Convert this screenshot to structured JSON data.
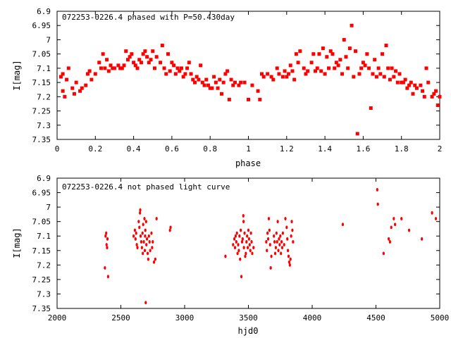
{
  "marker_color": "#ff0000",
  "chart_data": [
    {
      "type": "scatter",
      "title": "072253-0226.4 phased with P=50.430day",
      "xlabel": "phase",
      "ylabel": "I[mag]",
      "xlim": [
        0,
        2
      ],
      "ylim": [
        7.35,
        6.9
      ],
      "y_reversed": true,
      "xticks": [
        "0",
        "0.2",
        "0.4",
        "0.6",
        "0.8",
        "1",
        "1.2",
        "1.4",
        "1.6",
        "1.8",
        "2"
      ],
      "yticks": [
        "6.9",
        "6.95",
        "7",
        "7.05",
        "7.1",
        "7.15",
        "7.2",
        "7.25",
        "7.3",
        "7.35"
      ],
      "grid": false,
      "points": [
        [
          0.02,
          7.13
        ],
        [
          0.03,
          7.18
        ],
        [
          0.03,
          7.12
        ],
        [
          0.04,
          7.2
        ],
        [
          0.05,
          7.14
        ],
        [
          0.06,
          7.1
        ],
        [
          0.08,
          7.17
        ],
        [
          0.09,
          7.19
        ],
        [
          0.1,
          7.15
        ],
        [
          0.12,
          7.18
        ],
        [
          0.13,
          7.17
        ],
        [
          0.15,
          7.16
        ],
        [
          0.16,
          7.12
        ],
        [
          0.17,
          7.11
        ],
        [
          0.18,
          7.14
        ],
        [
          0.2,
          7.12
        ],
        [
          0.22,
          7.08
        ],
        [
          0.23,
          7.1
        ],
        [
          0.24,
          7.05
        ],
        [
          0.25,
          7.1
        ],
        [
          0.26,
          7.07
        ],
        [
          0.27,
          7.11
        ],
        [
          0.28,
          7.09
        ],
        [
          0.29,
          7.1
        ],
        [
          0.3,
          7.1
        ],
        [
          0.32,
          7.09
        ],
        [
          0.33,
          7.1
        ],
        [
          0.34,
          7.1
        ],
        [
          0.35,
          7.09
        ],
        [
          0.36,
          7.04
        ],
        [
          0.37,
          7.07
        ],
        [
          0.38,
          7.06
        ],
        [
          0.39,
          7.05
        ],
        [
          0.4,
          7.08
        ],
        [
          0.41,
          7.09
        ],
        [
          0.42,
          7.1
        ],
        [
          0.43,
          7.07
        ],
        [
          0.44,
          7.08
        ],
        [
          0.45,
          7.05
        ],
        [
          0.46,
          7.04
        ],
        [
          0.47,
          7.06
        ],
        [
          0.48,
          7.08
        ],
        [
          0.49,
          7.07
        ],
        [
          0.5,
          7.04
        ],
        [
          0.51,
          7.1
        ],
        [
          0.52,
          7.06
        ],
        [
          0.54,
          7.08
        ],
        [
          0.55,
          7.02
        ],
        [
          0.56,
          7.1
        ],
        [
          0.57,
          7.12
        ],
        [
          0.58,
          7.05
        ],
        [
          0.59,
          7.11
        ],
        [
          0.6,
          7.08
        ],
        [
          0.61,
          7.09
        ],
        [
          0.62,
          7.12
        ],
        [
          0.63,
          7.1
        ],
        [
          0.64,
          7.11
        ],
        [
          0.65,
          7.1
        ],
        [
          0.66,
          7.13
        ],
        [
          0.67,
          7.12
        ],
        [
          0.68,
          7.1
        ],
        [
          0.69,
          7.08
        ],
        [
          0.7,
          7.12
        ],
        [
          0.71,
          7.14
        ],
        [
          0.72,
          7.15
        ],
        [
          0.73,
          7.13
        ],
        [
          0.74,
          7.14
        ],
        [
          0.75,
          7.09
        ],
        [
          0.76,
          7.15
        ],
        [
          0.77,
          7.16
        ],
        [
          0.78,
          7.14
        ],
        [
          0.79,
          7.16
        ],
        [
          0.8,
          7.17
        ],
        [
          0.81,
          7.17
        ],
        [
          0.82,
          7.13
        ],
        [
          0.83,
          7.15
        ],
        [
          0.84,
          7.17
        ],
        [
          0.85,
          7.14
        ],
        [
          0.86,
          7.19
        ],
        [
          0.87,
          7.15
        ],
        [
          0.88,
          7.12
        ],
        [
          0.89,
          7.11
        ],
        [
          0.9,
          7.21
        ],
        [
          0.91,
          7.14
        ],
        [
          0.92,
          7.16
        ],
        [
          0.93,
          7.15
        ],
        [
          0.95,
          7.16
        ],
        [
          0.96,
          7.15
        ],
        [
          0.98,
          7.15
        ],
        [
          1.0,
          7.21
        ],
        [
          1.02,
          7.16
        ],
        [
          1.05,
          7.18
        ],
        [
          1.06,
          7.21
        ],
        [
          1.07,
          7.12
        ],
        [
          1.08,
          7.13
        ],
        [
          1.1,
          7.12
        ],
        [
          1.12,
          7.13
        ],
        [
          1.13,
          7.14
        ],
        [
          1.15,
          7.1
        ],
        [
          1.16,
          7.12
        ],
        [
          1.18,
          7.13
        ],
        [
          1.19,
          7.11
        ],
        [
          1.2,
          7.13
        ],
        [
          1.21,
          7.12
        ],
        [
          1.22,
          7.09
        ],
        [
          1.23,
          7.11
        ],
        [
          1.24,
          7.14
        ],
        [
          1.25,
          7.05
        ],
        [
          1.26,
          7.08
        ],
        [
          1.27,
          7.04
        ],
        [
          1.29,
          7.1
        ],
        [
          1.3,
          7.12
        ],
        [
          1.31,
          7.11
        ],
        [
          1.33,
          7.08
        ],
        [
          1.34,
          7.05
        ],
        [
          1.35,
          7.11
        ],
        [
          1.36,
          7.1
        ],
        [
          1.37,
          7.05
        ],
        [
          1.38,
          7.11
        ],
        [
          1.39,
          7.03
        ],
        [
          1.4,
          7.12
        ],
        [
          1.41,
          7.06
        ],
        [
          1.42,
          7.1
        ],
        [
          1.43,
          7.04
        ],
        [
          1.44,
          7.05
        ],
        [
          1.45,
          7.1
        ],
        [
          1.46,
          7.08
        ],
        [
          1.47,
          7.09
        ],
        [
          1.48,
          7.07
        ],
        [
          1.49,
          7.12
        ],
        [
          1.5,
          7.0
        ],
        [
          1.51,
          7.06
        ],
        [
          1.52,
          7.1
        ],
        [
          1.53,
          7.03
        ],
        [
          1.54,
          6.95
        ],
        [
          1.55,
          7.13
        ],
        [
          1.56,
          7.04
        ],
        [
          1.57,
          7.33
        ],
        [
          1.58,
          7.12
        ],
        [
          1.59,
          7.1
        ],
        [
          1.6,
          7.08
        ],
        [
          1.61,
          7.09
        ],
        [
          1.62,
          7.05
        ],
        [
          1.63,
          7.1
        ],
        [
          1.64,
          7.24
        ],
        [
          1.65,
          7.12
        ],
        [
          1.66,
          7.07
        ],
        [
          1.67,
          7.13
        ],
        [
          1.68,
          7.1
        ],
        [
          1.69,
          7.12
        ],
        [
          1.7,
          7.05
        ],
        [
          1.71,
          7.13
        ],
        [
          1.72,
          7.02
        ],
        [
          1.73,
          7.1
        ],
        [
          1.74,
          7.14
        ],
        [
          1.75,
          7.1
        ],
        [
          1.76,
          7.13
        ],
        [
          1.77,
          7.11
        ],
        [
          1.78,
          7.15
        ],
        [
          1.79,
          7.12
        ],
        [
          1.8,
          7.15
        ],
        [
          1.81,
          7.15
        ],
        [
          1.82,
          7.14
        ],
        [
          1.83,
          7.17
        ],
        [
          1.84,
          7.16
        ],
        [
          1.85,
          7.15
        ],
        [
          1.86,
          7.19
        ],
        [
          1.87,
          7.16
        ],
        [
          1.88,
          7.17
        ],
        [
          1.9,
          7.16
        ],
        [
          1.91,
          7.18
        ],
        [
          1.92,
          7.2
        ],
        [
          1.93,
          7.1
        ],
        [
          1.94,
          7.15
        ],
        [
          1.96,
          7.2
        ],
        [
          1.97,
          7.19
        ],
        [
          1.98,
          7.18
        ],
        [
          1.99,
          7.23
        ],
        [
          2.0,
          7.2
        ]
      ]
    },
    {
      "type": "scatter",
      "title": "072253-0226.4 not phased light curve",
      "xlabel": "hjd0",
      "ylabel": "I[mag]",
      "xlim": [
        2000,
        5000
      ],
      "ylim": [
        7.35,
        6.9
      ],
      "y_reversed": true,
      "xticks": [
        "2000",
        "2500",
        "3000",
        "3500",
        "4000",
        "4500",
        "5000"
      ],
      "yticks": [
        "6.9",
        "6.95",
        "7",
        "7.05",
        "7.1",
        "7.15",
        "7.2",
        "7.25",
        "7.3",
        "7.35"
      ],
      "grid": false,
      "points": [
        [
          2375,
          7.21
        ],
        [
          2380,
          7.1
        ],
        [
          2385,
          7.09
        ],
        [
          2388,
          7.13
        ],
        [
          2392,
          7.14
        ],
        [
          2395,
          7.11
        ],
        [
          2400,
          7.24
        ],
        [
          2600,
          7.1
        ],
        [
          2610,
          7.08
        ],
        [
          2615,
          7.11
        ],
        [
          2620,
          7.09
        ],
        [
          2625,
          7.13
        ],
        [
          2630,
          7.14
        ],
        [
          2640,
          7.05
        ],
        [
          2645,
          7.07
        ],
        [
          2650,
          7.02
        ],
        [
          2652,
          7.01
        ],
        [
          2655,
          7.1
        ],
        [
          2660,
          7.12
        ],
        [
          2665,
          7.14
        ],
        [
          2670,
          7.09
        ],
        [
          2672,
          7.16
        ],
        [
          2675,
          7.06
        ],
        [
          2680,
          7.12
        ],
        [
          2685,
          7.04
        ],
        [
          2688,
          7.15
        ],
        [
          2690,
          7.1
        ],
        [
          2692,
          7.08
        ],
        [
          2695,
          7.33
        ],
        [
          2698,
          7.05
        ],
        [
          2700,
          7.13
        ],
        [
          2705,
          7.11
        ],
        [
          2710,
          7.16
        ],
        [
          2715,
          7.18
        ],
        [
          2720,
          7.1
        ],
        [
          2725,
          7.12
        ],
        [
          2730,
          7.15
        ],
        [
          2740,
          7.09
        ],
        [
          2745,
          7.14
        ],
        [
          2750,
          7.12
        ],
        [
          2760,
          7.19
        ],
        [
          2770,
          7.18
        ],
        [
          2780,
          7.04
        ],
        [
          2885,
          7.08
        ],
        [
          2890,
          7.07
        ],
        [
          3320,
          7.17
        ],
        [
          3380,
          7.13
        ],
        [
          3390,
          7.11
        ],
        [
          3395,
          7.14
        ],
        [
          3400,
          7.1
        ],
        [
          3405,
          7.12
        ],
        [
          3410,
          7.09
        ],
        [
          3415,
          7.16
        ],
        [
          3420,
          7.13
        ],
        [
          3425,
          7.15
        ],
        [
          3430,
          7.1
        ],
        [
          3435,
          7.18
        ],
        [
          3440,
          7.08
        ],
        [
          3445,
          7.24
        ],
        [
          3450,
          7.12
        ],
        [
          3455,
          7.11
        ],
        [
          3460,
          7.03
        ],
        [
          3462,
          7.05
        ],
        [
          3465,
          7.14
        ],
        [
          3470,
          7.09
        ],
        [
          3475,
          7.17
        ],
        [
          3480,
          7.16
        ],
        [
          3485,
          7.12
        ],
        [
          3490,
          7.1
        ],
        [
          3495,
          7.14
        ],
        [
          3500,
          7.08
        ],
        [
          3505,
          7.11
        ],
        [
          3510,
          7.13
        ],
        [
          3515,
          7.15
        ],
        [
          3520,
          7.09
        ],
        [
          3525,
          7.12
        ],
        [
          3530,
          7.16
        ],
        [
          3540,
          7.14
        ],
        [
          3640,
          7.12
        ],
        [
          3645,
          7.15
        ],
        [
          3650,
          7.09
        ],
        [
          3655,
          7.11
        ],
        [
          3660,
          7.04
        ],
        [
          3665,
          7.08
        ],
        [
          3670,
          7.13
        ],
        [
          3675,
          7.21
        ],
        [
          3680,
          7.17
        ],
        [
          3700,
          7.1
        ],
        [
          3705,
          7.12
        ],
        [
          3710,
          7.16
        ],
        [
          3715,
          7.14
        ],
        [
          3720,
          7.09
        ],
        [
          3725,
          7.12
        ],
        [
          3730,
          7.05
        ],
        [
          3735,
          7.15
        ],
        [
          3740,
          7.11
        ],
        [
          3745,
          7.13
        ],
        [
          3750,
          7.1
        ],
        [
          3755,
          7.16
        ],
        [
          3760,
          7.12
        ],
        [
          3765,
          7.14
        ],
        [
          3770,
          7.09
        ],
        [
          3780,
          7.13
        ],
        [
          3790,
          7.04
        ],
        [
          3800,
          7.07
        ],
        [
          3805,
          7.11
        ],
        [
          3810,
          7.15
        ],
        [
          3815,
          7.17
        ],
        [
          3820,
          7.19
        ],
        [
          3825,
          7.2
        ],
        [
          3830,
          7.18
        ],
        [
          3835,
          7.1
        ],
        [
          3840,
          7.05
        ],
        [
          3845,
          7.08
        ],
        [
          3850,
          7.12
        ],
        [
          4240,
          7.06
        ],
        [
          4510,
          6.94
        ],
        [
          4515,
          6.99
        ],
        [
          4560,
          7.16
        ],
        [
          4600,
          7.11
        ],
        [
          4610,
          7.12
        ],
        [
          4620,
          7.07
        ],
        [
          4640,
          7.04
        ],
        [
          4650,
          7.06
        ],
        [
          4700,
          7.04
        ],
        [
          4760,
          7.08
        ],
        [
          4860,
          7.11
        ],
        [
          4940,
          7.02
        ],
        [
          4970,
          7.04
        ]
      ]
    }
  ]
}
